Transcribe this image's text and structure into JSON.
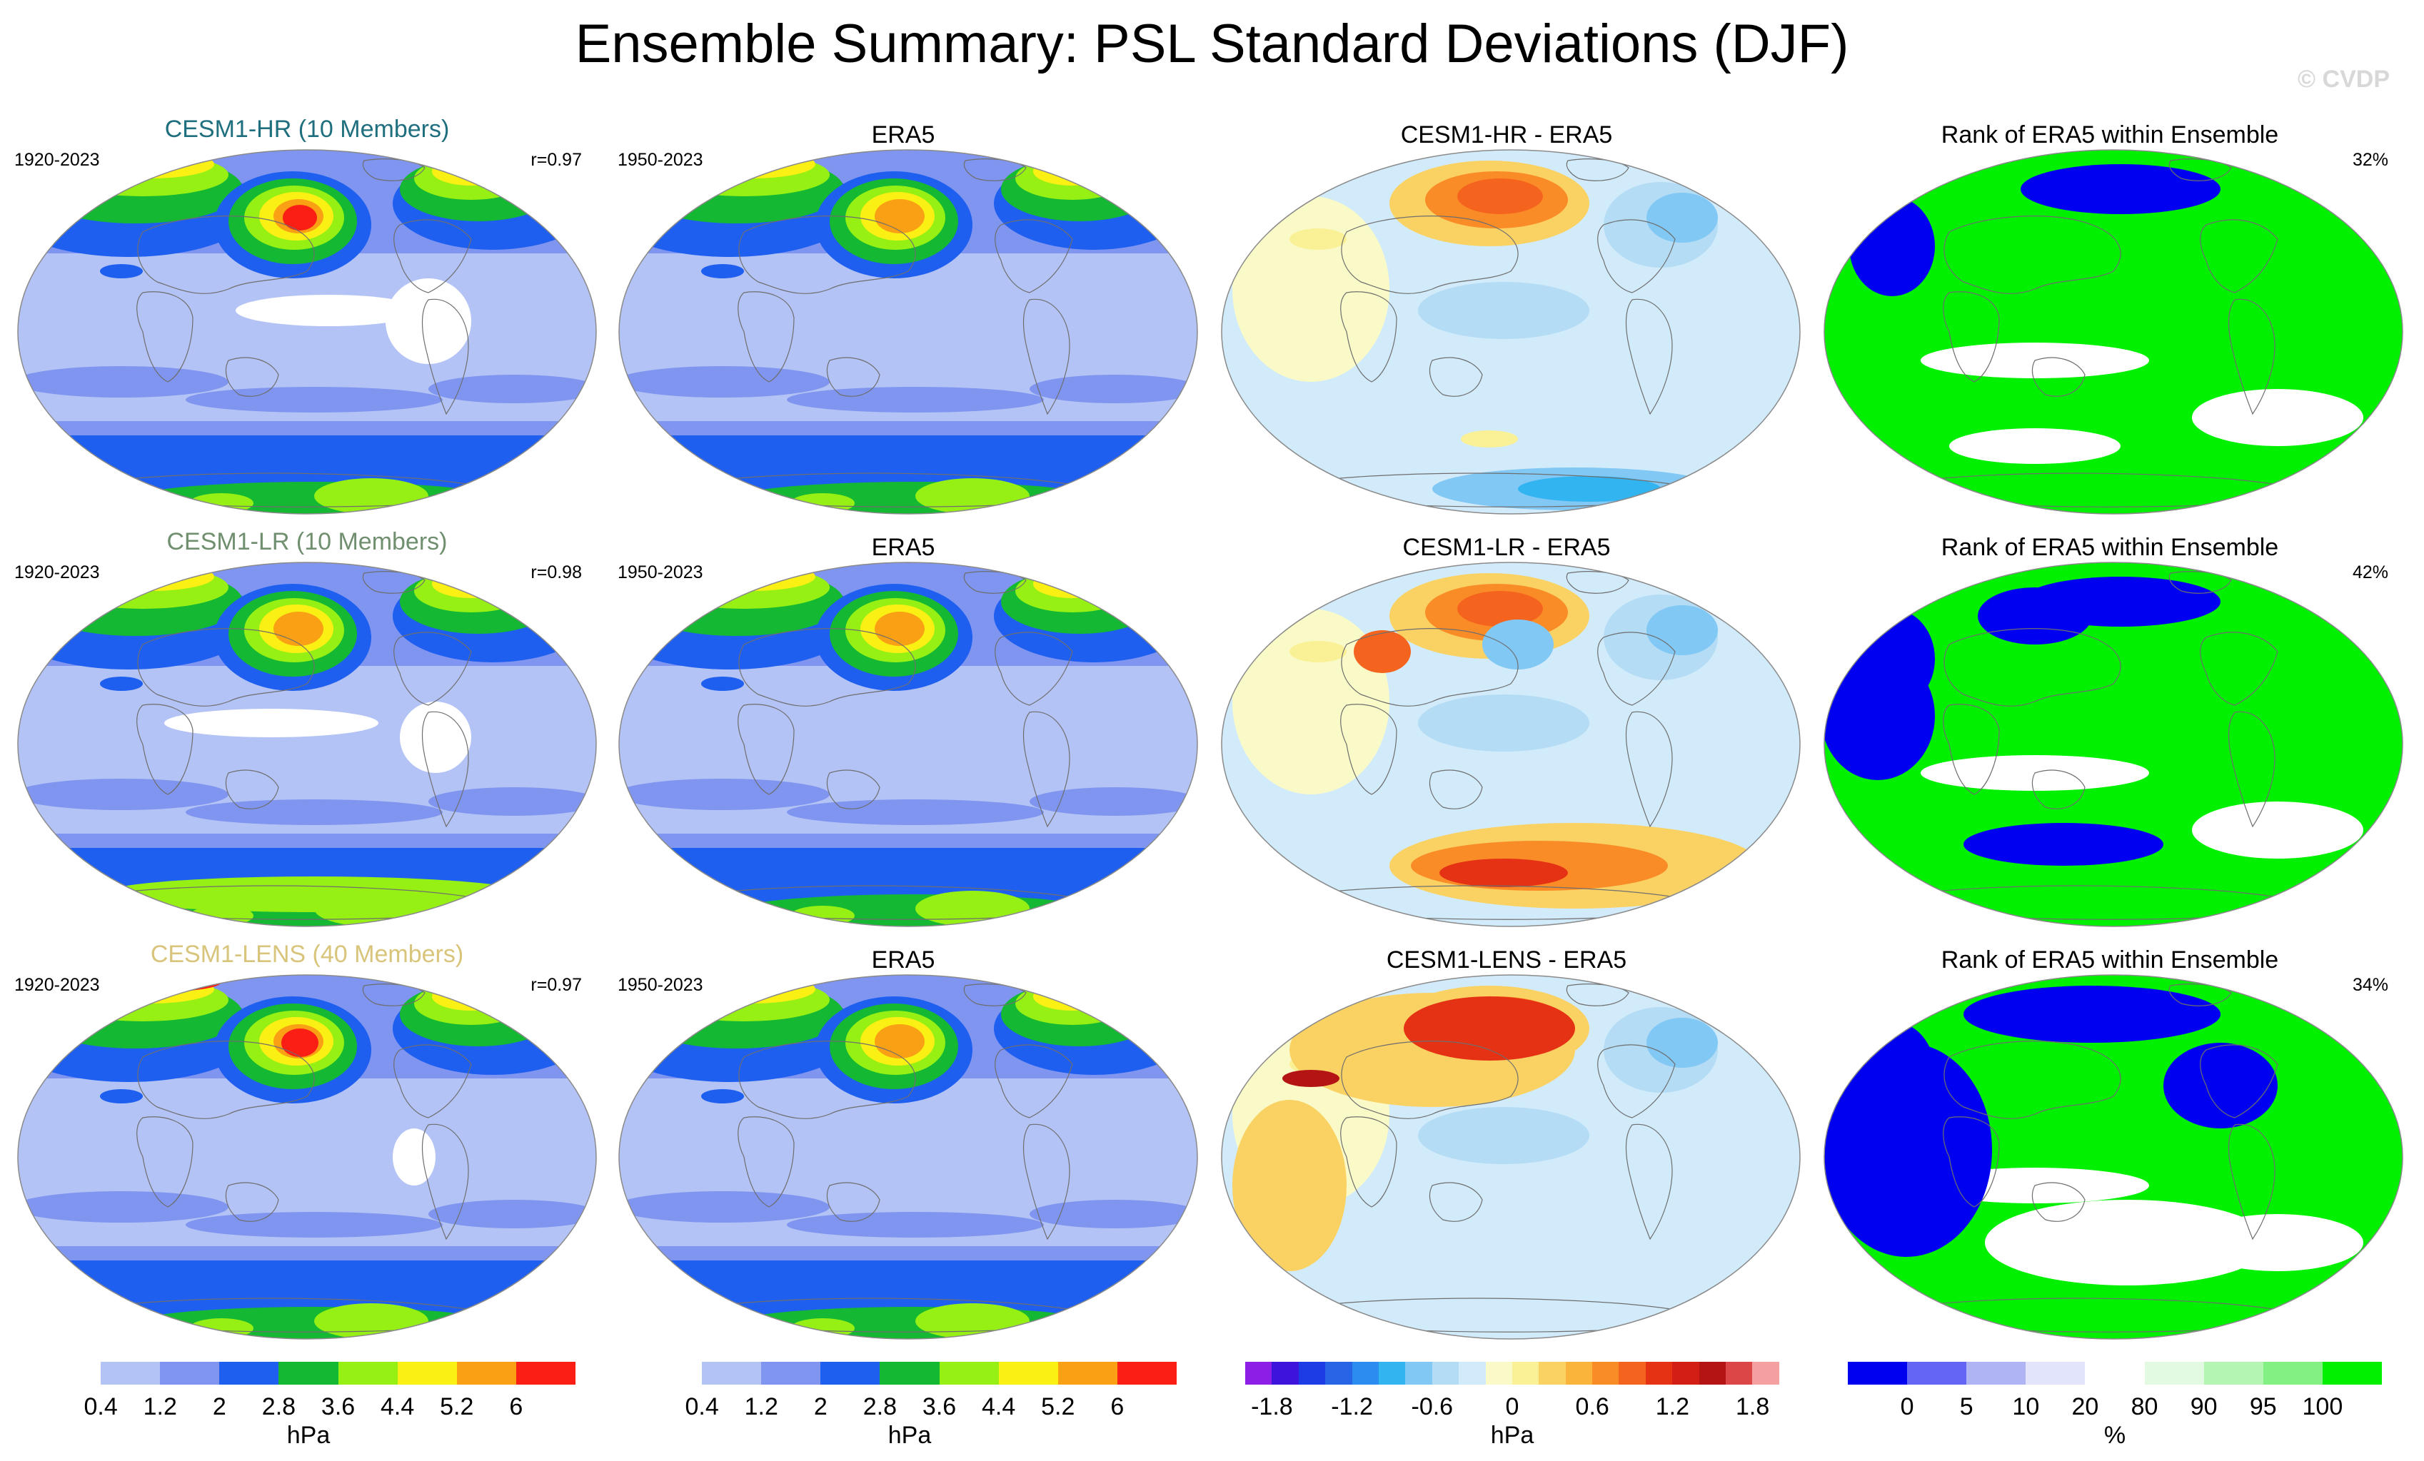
{
  "title": "Ensemble Summary: PSL Standard Deviations (DJF)",
  "copyright": "© CVDP",
  "rows": [
    {
      "model": {
        "title": "CESM1-HR (10 Members)",
        "color": "#1f6f7f",
        "years": "1920-2023",
        "r": "r=0.97"
      },
      "obs": {
        "title": "ERA5",
        "years": "1950-2023"
      },
      "diff": {
        "title": "CESM1-HR - ERA5"
      },
      "rank": {
        "title": "Rank of ERA5 within Ensemble",
        "pct": "32%"
      }
    },
    {
      "model": {
        "title": "CESM1-LR (10 Members)",
        "color": "#6f8f6f",
        "years": "1920-2023",
        "r": "r=0.98"
      },
      "obs": {
        "title": "ERA5",
        "years": "1950-2023"
      },
      "diff": {
        "title": "CESM1-LR - ERA5"
      },
      "rank": {
        "title": "Rank of ERA5 within Ensemble",
        "pct": "42%"
      }
    },
    {
      "model": {
        "title": "CESM1-LENS (40 Members)",
        "color": "#d8c47a",
        "years": "1920-2023",
        "r": "r=0.97"
      },
      "obs": {
        "title": "ERA5",
        "years": "1950-2023"
      },
      "diff": {
        "title": "CESM1-LENS - ERA5"
      },
      "rank": {
        "title": "Rank of ERA5 within Ensemble",
        "pct": "34%"
      }
    }
  ],
  "colorbars": {
    "std": {
      "colors": [
        "#ffffff",
        "#b4c3f5",
        "#7f95ef",
        "#1f5ff0",
        "#14b832",
        "#96f014",
        "#faf014",
        "#faa014",
        "#fa1e14"
      ],
      "ticks": [
        "0.4",
        "1.2",
        "2",
        "2.8",
        "3.6",
        "4.4",
        "5.2",
        "6"
      ],
      "unit": "hPa"
    },
    "diff": {
      "colors": [
        "#8c1ee6",
        "#3c14dc",
        "#1e3ce6",
        "#2864e6",
        "#2d8cf0",
        "#32b4f0",
        "#82c8f5",
        "#b4dcf5",
        "#d2ebfa",
        "#fafac8",
        "#faf096",
        "#fad264",
        "#fab43c",
        "#fa8c28",
        "#f5641e",
        "#e63214",
        "#d21e14",
        "#b41414",
        "#dc4646",
        "#f5a0a0"
      ],
      "ticks": [
        "-1.8",
        "-1.2",
        "-0.6",
        "0",
        "0.6",
        "1.2",
        "1.8"
      ],
      "unit": "hPa"
    },
    "rank": {
      "colors": [
        "#0000f0",
        "#6464f5",
        "#afb4f5",
        "#e1e4fa",
        "#ffffff",
        "#e1fae1",
        "#b4f5b4",
        "#82f082",
        "#00f000"
      ],
      "ticks": [
        "0",
        "5",
        "10",
        "20",
        "80",
        "90",
        "95",
        "100"
      ],
      "unit": "%"
    }
  }
}
